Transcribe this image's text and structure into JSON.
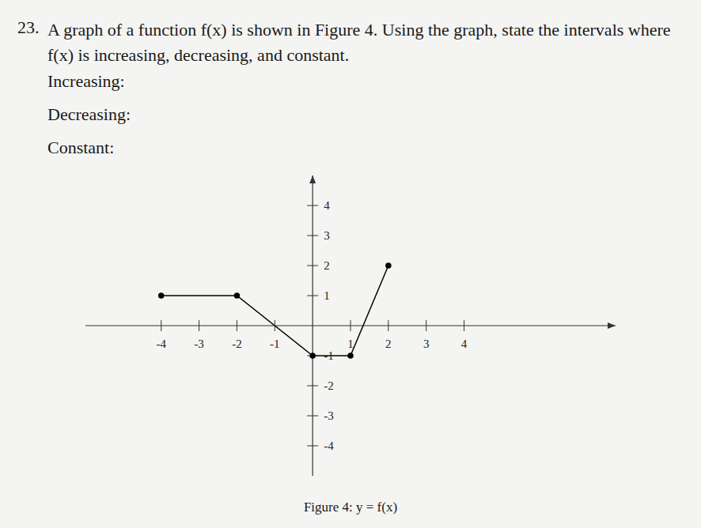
{
  "question": {
    "number": "23.",
    "text": "A graph of a function f(x) is shown in Figure 4. Using the graph, state the intervals where f(x) is increasing, decreasing, and constant.",
    "prompts": [
      "Increasing:",
      "Decreasing:",
      "Constant:"
    ],
    "caption": "Figure 4: y = f(x)"
  },
  "chart_data": {
    "type": "line",
    "x": [
      -4,
      -2,
      0,
      1,
      2
    ],
    "values": [
      1,
      1,
      -1,
      -1,
      2
    ],
    "color": "#000000",
    "marker": "circle",
    "xlim": [
      -6,
      8
    ],
    "ylim": [
      -5,
      5
    ],
    "xticks": [
      -4,
      -3,
      -2,
      -1,
      1,
      2,
      3,
      4
    ],
    "yticks": [
      -4,
      -3,
      -2,
      -1,
      1,
      2,
      3,
      4
    ],
    "grid": false
  }
}
